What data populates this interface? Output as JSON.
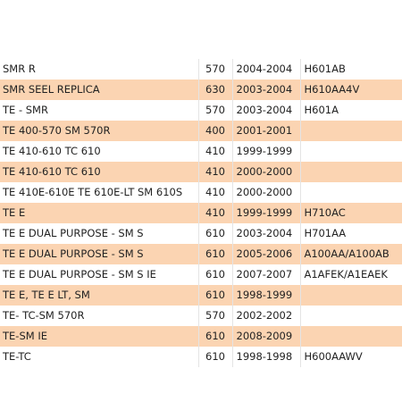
{
  "table": {
    "rows": [
      {
        "model": "SMR R",
        "cc": "570",
        "years": "2004-2004",
        "code": "H601AB"
      },
      {
        "model": "SMR SEEL REPLICA",
        "cc": "630",
        "years": "2003-2004",
        "code": "H610AA4V"
      },
      {
        "model": "TE - SMR",
        "cc": "570",
        "years": "2003-2004",
        "code": "H601A"
      },
      {
        "model": "TE 400-570 SM 570R",
        "cc": "400",
        "years": "2001-2001",
        "code": ""
      },
      {
        "model": "TE 410-610 TC 610",
        "cc": "410",
        "years": "1999-1999",
        "code": ""
      },
      {
        "model": "TE 410-610 TC 610",
        "cc": "410",
        "years": "2000-2000",
        "code": ""
      },
      {
        "model": "TE 410E-610E TE 610E-LT SM 610S",
        "cc": "410",
        "years": "2000-2000",
        "code": ""
      },
      {
        "model": "TE E",
        "cc": "410",
        "years": "1999-1999",
        "code": "H710AC"
      },
      {
        "model": "TE E DUAL PURPOSE - SM S",
        "cc": "610",
        "years": "2003-2004",
        "code": "H701AA"
      },
      {
        "model": "TE E DUAL PURPOSE - SM S",
        "cc": "610",
        "years": "2005-2006",
        "code": "A100AA/A100AB"
      },
      {
        "model": "TE E DUAL PURPOSE - SM S IE",
        "cc": "610",
        "years": "2007-2007",
        "code": "A1AFEK/A1EAEK"
      },
      {
        "model": "TE E, TE E LT, SM",
        "cc": "610",
        "years": "1998-1999",
        "code": ""
      },
      {
        "model": "TE- TC-SM 570R",
        "cc": "570",
        "years": "2002-2002",
        "code": ""
      },
      {
        "model": "TE-SM IE",
        "cc": "610",
        "years": "2008-2009",
        "code": ""
      },
      {
        "model": "TE-TC",
        "cc": "610",
        "years": "1998-1998",
        "code": "H600AAWV"
      }
    ]
  },
  "colors": {
    "row_alt": "#fbd4b2",
    "row_plain": "#ffffff",
    "text": "#222222"
  }
}
